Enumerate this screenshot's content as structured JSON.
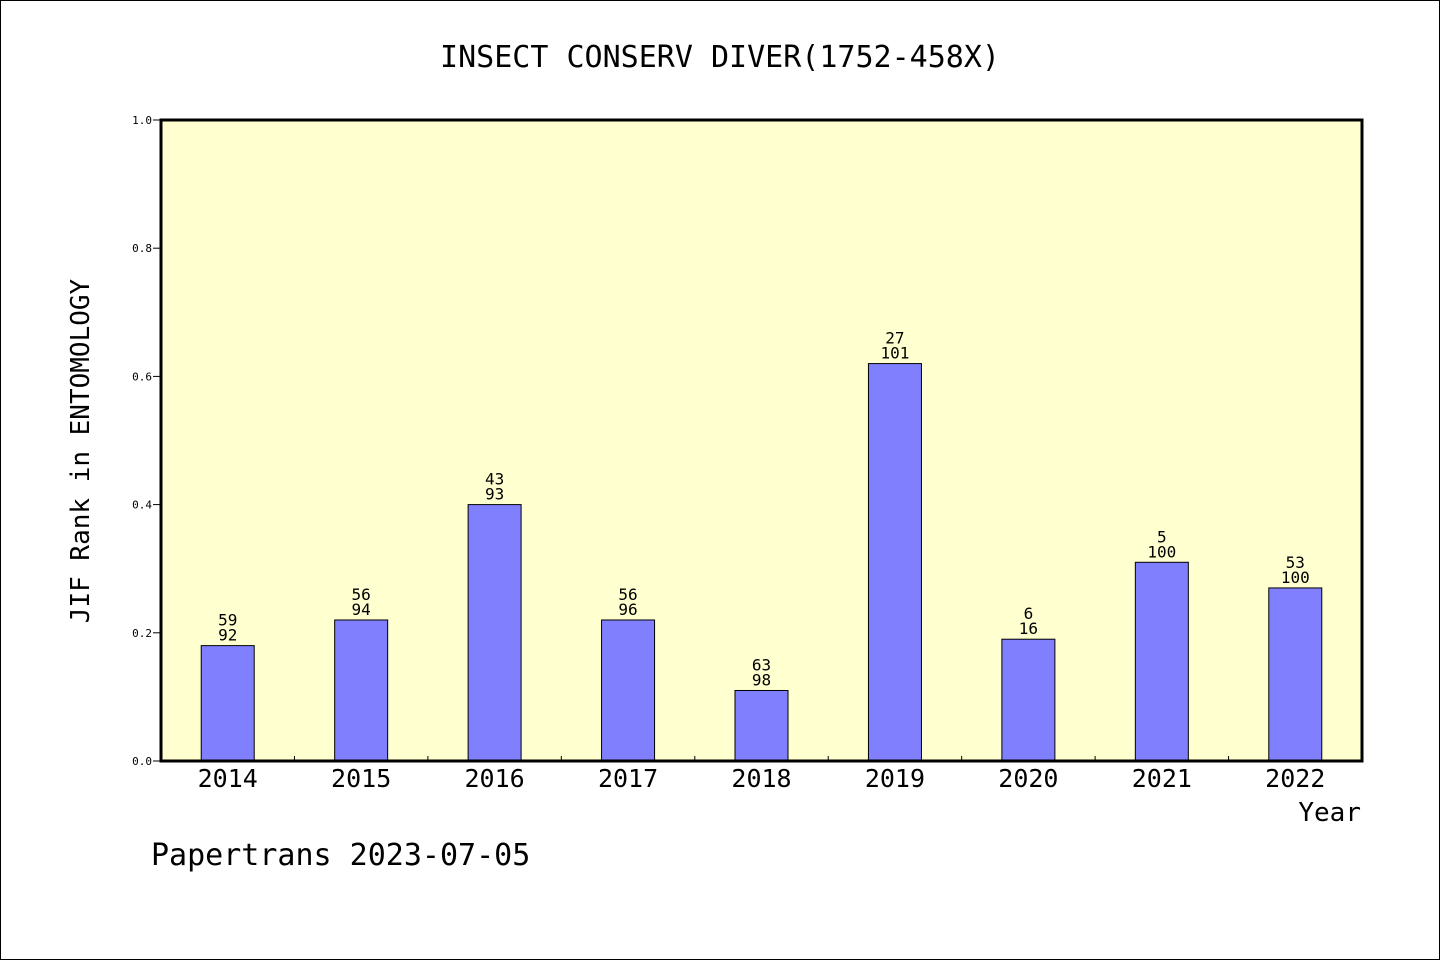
{
  "chart_data": {
    "type": "bar",
    "title": "INSECT CONSERV DIVER(1752-458X)",
    "ylabel": "JIF Rank in ENTOMOLOGY",
    "xlabel": "Year",
    "ylim": [
      0,
      1.0
    ],
    "yticks": [
      "0.0",
      "0.2",
      "0.4",
      "0.6",
      "0.8",
      "1.0"
    ],
    "categories": [
      "2014",
      "2015",
      "2016",
      "2017",
      "2018",
      "2019",
      "2020",
      "2021",
      "2022"
    ],
    "values": [
      0.18,
      0.22,
      0.4,
      0.22,
      0.11,
      0.62,
      0.19,
      0.31,
      0.27
    ],
    "rank_labels": [
      {
        "top": "59",
        "bottom": "92"
      },
      {
        "top": "56",
        "bottom": "94"
      },
      {
        "top": "43",
        "bottom": "93"
      },
      {
        "top": "56",
        "bottom": "96"
      },
      {
        "top": "63",
        "bottom": "98"
      },
      {
        "top": "27",
        "bottom": "101"
      },
      {
        "top": "6",
        "bottom": "16"
      },
      {
        "top": "5",
        "bottom": "100"
      },
      {
        "top": "53",
        "bottom": "100"
      }
    ],
    "grid": false,
    "colors": {
      "bar": "#8080ff",
      "plot_background": "#ffffd0"
    }
  },
  "footer": "Papertrans 2023-07-05"
}
